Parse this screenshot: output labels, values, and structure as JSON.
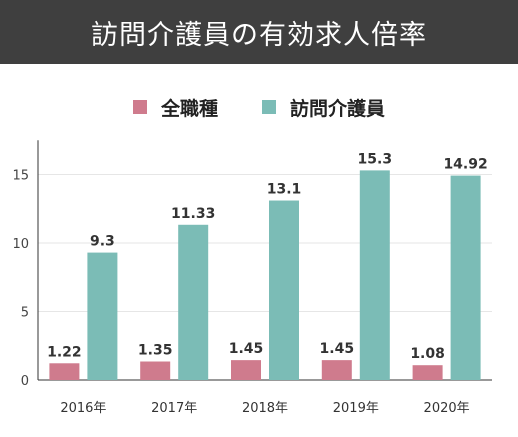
{
  "title": "訪問介護員の有効求人倍率",
  "colors": {
    "series1": "#cf7b8d",
    "series2": "#7bbcb6",
    "title_bg": "#3f3f3f"
  },
  "chart_data": {
    "type": "bar",
    "categories": [
      "2016年",
      "2017年",
      "2018年",
      "2019年",
      "2020年"
    ],
    "series": [
      {
        "name": "全職種",
        "values": [
          1.22,
          1.35,
          1.45,
          1.45,
          1.08
        ],
        "labels": [
          "1.22",
          "1.35",
          "1.45",
          "1.45",
          "1.08"
        ]
      },
      {
        "name": "訪問介護員",
        "values": [
          9.3,
          11.33,
          13.1,
          15.3,
          14.92
        ],
        "labels": [
          "9.3",
          "11.33",
          "13.1",
          "15.3",
          "14.92"
        ]
      }
    ],
    "yticks": [
      "0",
      "5",
      "10",
      "15"
    ],
    "ylim": [
      0,
      17.5
    ],
    "grid": true,
    "legend": "top-center"
  }
}
